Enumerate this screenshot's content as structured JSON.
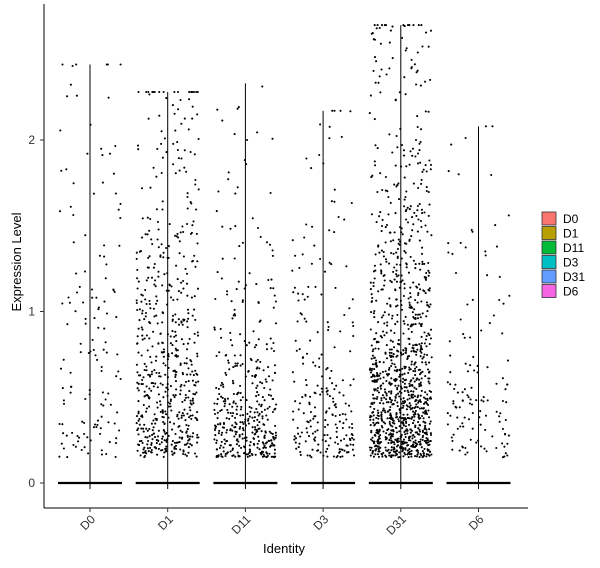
{
  "chart_data": {
    "type": "scatter",
    "subtype": "violin-jitter",
    "xlabel": "Identity",
    "ylabel": "Expression Level",
    "categories": [
      "D0",
      "D1",
      "D11",
      "D3",
      "D31",
      "D6"
    ],
    "ylim": [
      -0.15,
      2.8
    ],
    "yticks": [
      0,
      1,
      2
    ],
    "grid": false,
    "legend_position": "right",
    "legend": [
      {
        "label": "D0",
        "color": "#F8766D"
      },
      {
        "label": "D1",
        "color": "#B79F00"
      },
      {
        "label": "D11",
        "color": "#00BA38"
      },
      {
        "label": "D3",
        "color": "#00BFC4"
      },
      {
        "label": "D31",
        "color": "#619CFF"
      },
      {
        "label": "D6",
        "color": "#F564E3"
      }
    ],
    "series": [
      {
        "category": "D0",
        "max": 2.44,
        "n_nonzero": 140,
        "nonzero_mean": 0.9
      },
      {
        "category": "D1",
        "max": 2.28,
        "n_nonzero": 600,
        "nonzero_mean": 0.85
      },
      {
        "category": "D11",
        "max": 2.33,
        "n_nonzero": 420,
        "nonzero_mean": 0.45
      },
      {
        "category": "D3",
        "max": 2.17,
        "n_nonzero": 230,
        "nonzero_mean": 0.55
      },
      {
        "category": "D31",
        "max": 2.67,
        "n_nonzero": 1150,
        "nonzero_mean": 0.7
      },
      {
        "category": "D6",
        "max": 2.08,
        "n_nonzero": 130,
        "nonzero_mean": 0.6
      }
    ],
    "point_color": "#000000"
  }
}
